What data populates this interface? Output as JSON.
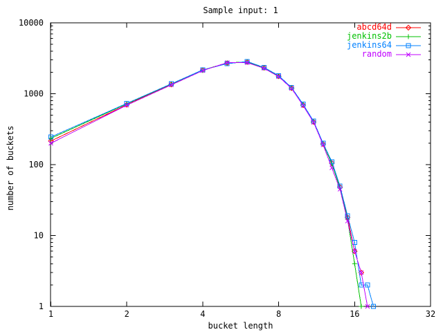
{
  "chart_data": {
    "type": "line",
    "title": "Sample input: 1",
    "xlabel": "bucket length",
    "ylabel": "number of buckets",
    "x_scale": "log2",
    "y_scale": "log10",
    "xlim": [
      1,
      32
    ],
    "ylim": [
      1,
      10000
    ],
    "x_ticks": [
      1,
      2,
      4,
      8,
      16,
      32
    ],
    "y_ticks": [
      1,
      10,
      100,
      1000,
      10000
    ],
    "grid": false,
    "legend_position": "top-right-inside",
    "x": [
      1,
      2,
      3,
      4,
      5,
      6,
      7,
      8,
      9,
      10,
      11,
      12,
      13,
      14,
      15,
      16,
      17,
      18,
      19
    ],
    "series": [
      {
        "name": "abcd64d",
        "color": "#ff0000",
        "marker": "diamond",
        "values": [
          215,
          700,
          1350,
          2150,
          2700,
          2800,
          2320,
          1760,
          1200,
          690,
          400,
          195,
          105,
          48,
          18,
          6,
          3,
          null,
          null
        ]
      },
      {
        "name": "jenkins2b",
        "color": "#00c000",
        "marker": "plus",
        "values": [
          235,
          720,
          1370,
          2160,
          2720,
          2820,
          2310,
          1770,
          1210,
          700,
          405,
          198,
          103,
          47,
          17,
          4,
          1,
          null,
          null
        ]
      },
      {
        "name": "jenkins64",
        "color": "#0080ff",
        "marker": "square",
        "values": [
          245,
          730,
          1380,
          2170,
          2650,
          2850,
          2350,
          1800,
          1220,
          710,
          410,
          200,
          110,
          50,
          19,
          8,
          2,
          2,
          1
        ]
      },
      {
        "name": "random",
        "color": "#c000ff",
        "marker": "cross",
        "values": [
          200,
          690,
          1330,
          2120,
          2750,
          2750,
          2280,
          1740,
          1190,
          680,
          395,
          190,
          90,
          45,
          16,
          6,
          3,
          1,
          null
        ]
      }
    ]
  },
  "colors": {
    "axis": "#000000",
    "background": "#ffffff"
  }
}
